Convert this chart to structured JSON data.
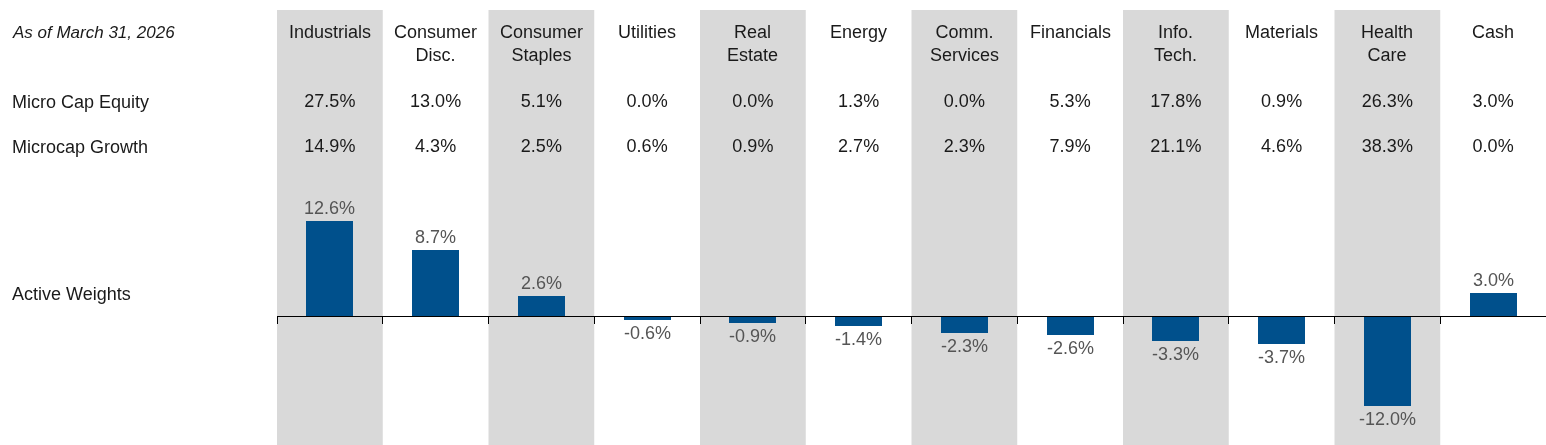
{
  "chart_data": [
    {
      "type": "other",
      "annotations": [
        "As of March 31, 2026"
      ],
      "categories": [
        "Industrials",
        "Consumer Disc.",
        "Consumer Staples",
        "Utilities",
        "Real Estate",
        "Energy",
        "Comm. Services",
        "Financials",
        "Info. Tech.",
        "Materials",
        "Health Care",
        "Cash"
      ],
      "series": [
        {
          "name": "Micro Cap Equity",
          "values": [
            27.5,
            13.0,
            5.1,
            0.0,
            0.0,
            1.3,
            0.0,
            5.3,
            17.8,
            0.9,
            26.3,
            3.0
          ],
          "value_labels": [
            "27.5%",
            "13.0%",
            "5.1%",
            "0.0%",
            "0.0%",
            "1.3%",
            "0.0%",
            "5.3%",
            "17.8%",
            "0.9%",
            "26.3%",
            "3.0%"
          ]
        },
        {
          "name": "Microcap Growth",
          "values": [
            14.9,
            4.3,
            2.5,
            0.6,
            0.9,
            2.7,
            2.3,
            7.9,
            21.1,
            4.6,
            38.3,
            0.0
          ],
          "value_labels": [
            "14.9%",
            "4.3%",
            "2.5%",
            "0.6%",
            "0.9%",
            "2.7%",
            "2.3%",
            "7.9%",
            "21.1%",
            "4.6%",
            "38.3%",
            "0.0%"
          ]
        }
      ]
    },
    {
      "type": "bar",
      "categories": [
        "Industrials",
        "Consumer Disc.",
        "Consumer Staples",
        "Utilities",
        "Real Estate",
        "Energy",
        "Comm. Services",
        "Financials",
        "Info. Tech.",
        "Materials",
        "Health Care",
        "Cash"
      ],
      "series": [
        {
          "name": "Active Weights",
          "color": "#00508c",
          "values": [
            12.6,
            8.7,
            2.6,
            -0.6,
            -0.9,
            -1.4,
            -2.3,
            -2.6,
            -3.3,
            -3.7,
            -12.0,
            3.0
          ],
          "value_labels": [
            "12.6%",
            "8.7%",
            "2.6%",
            "-0.6%",
            "-0.9%",
            "-1.4%",
            "-2.3%",
            "-2.6%",
            "-3.3%",
            "-3.7%",
            "-12.0%",
            "3.0%"
          ]
        }
      ],
      "bands": [
        {
          "axis": "x",
          "from": "Industrials",
          "to": "Industrials",
          "color": "#d9d9d9"
        },
        {
          "axis": "x",
          "from": "Consumer Staples",
          "to": "Consumer Staples",
          "color": "#d9d9d9"
        },
        {
          "axis": "x",
          "from": "Real Estate",
          "to": "Real Estate",
          "color": "#d9d9d9"
        },
        {
          "axis": "x",
          "from": "Comm. Services",
          "to": "Comm. Services",
          "color": "#d9d9d9"
        },
        {
          "axis": "x",
          "from": "Info. Tech.",
          "to": "Info. Tech.",
          "color": "#d9d9d9"
        },
        {
          "axis": "x",
          "from": "Health Care",
          "to": "Health Care",
          "color": "#d9d9d9"
        }
      ],
      "tick_labels": false,
      "grid": false,
      "legend": false
    }
  ]
}
